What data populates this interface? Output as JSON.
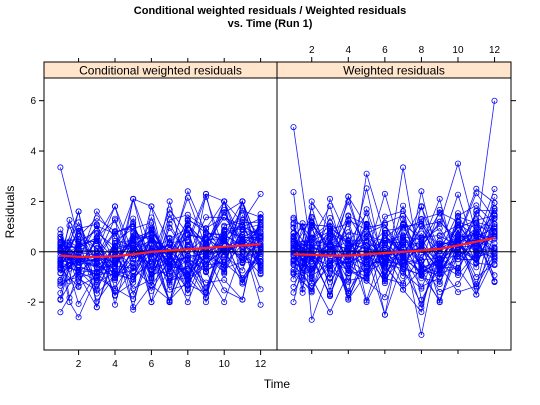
{
  "chart_data": {
    "type": "line",
    "title_line1": "Conditional weighted residuals / Weighted residuals",
    "title_line2": "vs. Time (Run 1)",
    "xlabel": "Time",
    "ylabel": "Residuals",
    "xlim": [
      0.1,
      12.9
    ],
    "ylim": [
      -3.9,
      6.9
    ],
    "x_ticks": [
      2,
      4,
      6,
      8,
      10,
      12
    ],
    "y_ticks": [
      -2,
      0,
      2,
      4,
      6
    ],
    "x_tick_labels": [
      "2",
      "4",
      "6",
      "8",
      "10",
      "12"
    ],
    "y_tick_labels": [
      "-2",
      "0",
      "2",
      "4",
      "6"
    ],
    "reference_line_y": 0,
    "n_subjects": 50,
    "colors": {
      "individual": "#0000ff",
      "smooth": "#ff2020",
      "strip": "#ffe5cc",
      "reference": "#000000"
    },
    "panels": [
      {
        "name": "Conditional weighted residuals",
        "smooth": {
          "x": [
            1,
            2,
            3,
            4,
            5,
            6,
            7,
            8,
            9,
            10,
            11,
            12
          ],
          "y": [
            -0.15,
            -0.2,
            -0.2,
            -0.18,
            -0.1,
            0.0,
            0.05,
            0.1,
            0.15,
            0.2,
            0.25,
            0.3
          ]
        },
        "ranges": {
          "x": [
            1,
            1.5,
            2,
            3,
            4,
            5,
            6,
            7,
            8,
            9,
            10,
            11,
            12
          ],
          "min": [
            -2.4,
            -2.0,
            -2.6,
            -2.2,
            -2.1,
            -2.3,
            -2.0,
            -2.0,
            -2.0,
            -2.0,
            -2.0,
            -1.9,
            -2.1
          ],
          "max": [
            3.35,
            1.9,
            1.6,
            1.6,
            1.8,
            2.1,
            1.8,
            2.0,
            2.4,
            2.3,
            2.0,
            2.0,
            2.3
          ]
        }
      },
      {
        "name": "Weighted residuals",
        "smooth": {
          "x": [
            1,
            2,
            3,
            4,
            5,
            6,
            7,
            8,
            9,
            10,
            11,
            12
          ],
          "y": [
            -0.1,
            -0.12,
            -0.15,
            -0.15,
            -0.1,
            -0.05,
            0.0,
            0.05,
            0.12,
            0.25,
            0.4,
            0.55
          ]
        },
        "ranges": {
          "x": [
            1,
            1.5,
            2,
            3,
            4,
            5,
            6,
            7,
            8,
            9,
            10,
            11,
            12
          ],
          "min": [
            -2.0,
            -2.1,
            -2.7,
            -2.4,
            -1.9,
            -2.0,
            -2.5,
            -1.5,
            -3.3,
            -2.0,
            -1.6,
            -1.7,
            -1.2
          ],
          "max": [
            4.95,
            2.2,
            2.0,
            2.1,
            2.2,
            3.1,
            2.3,
            3.35,
            2.4,
            2.1,
            3.5,
            2.5,
            6.0
          ]
        }
      }
    ]
  }
}
